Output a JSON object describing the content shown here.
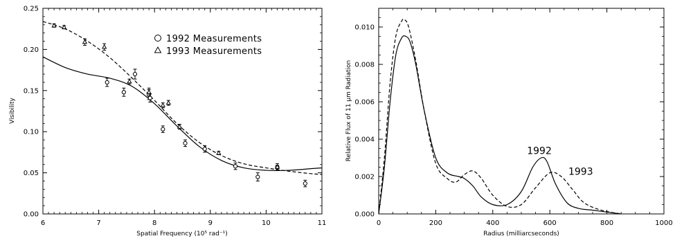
{
  "chart_data": [
    {
      "type": "scatter",
      "xlabel": "Spatial Frequency (10⁵ rad⁻¹)",
      "ylabel": "Visibility",
      "xlim": [
        6,
        11
      ],
      "ylim": [
        0,
        0.25
      ],
      "xticks": [
        6,
        7,
        8,
        9,
        10,
        11
      ],
      "yticks": [
        "0.00",
        "0.05",
        "0.10",
        "0.15",
        "0.20",
        "0.25"
      ],
      "legend": {
        "position": "top-right",
        "entries": [
          "1992 Measurements",
          "1993 Measurements"
        ]
      },
      "series": [
        {
          "name": "1992 Measurements",
          "marker": "circle",
          "points": [
            {
              "x": 7.15,
              "y": 0.16,
              "err": 0.005
            },
            {
              "x": 7.45,
              "y": 0.148,
              "err": 0.005
            },
            {
              "x": 7.65,
              "y": 0.17,
              "err": 0.006
            },
            {
              "x": 7.9,
              "y": 0.145,
              "err": 0.006
            },
            {
              "x": 7.92,
              "y": 0.141,
              "err": 0.005
            },
            {
              "x": 8.15,
              "y": 0.103,
              "err": 0.004
            },
            {
              "x": 8.55,
              "y": 0.086,
              "err": 0.004
            },
            {
              "x": 8.9,
              "y": 0.079,
              "err": 0.004
            },
            {
              "x": 9.45,
              "y": 0.058,
              "err": 0.004
            },
            {
              "x": 9.85,
              "y": 0.045,
              "err": 0.005
            },
            {
              "x": 10.2,
              "y": 0.057,
              "err": 0.004
            },
            {
              "x": 10.7,
              "y": 0.037,
              "err": 0.004
            }
          ]
        },
        {
          "name": "1993 Measurements",
          "marker": "triangle",
          "points": [
            {
              "x": 6.2,
              "y": 0.229,
              "err": 0.002
            },
            {
              "x": 6.38,
              "y": 0.227,
              "err": 0.002
            },
            {
              "x": 6.75,
              "y": 0.209,
              "err": 0.004
            },
            {
              "x": 7.1,
              "y": 0.203,
              "err": 0.004
            },
            {
              "x": 7.55,
              "y": 0.161,
              "err": 0.003
            },
            {
              "x": 7.9,
              "y": 0.148,
              "err": 0.005
            },
            {
              "x": 8.15,
              "y": 0.132,
              "err": 0.003
            },
            {
              "x": 8.25,
              "y": 0.135,
              "err": 0.003
            },
            {
              "x": 8.45,
              "y": 0.106,
              "err": 0.003
            },
            {
              "x": 9.15,
              "y": 0.074,
              "err": 0.002
            },
            {
              "x": 10.2,
              "y": 0.057,
              "err": 0.002
            }
          ]
        }
      ],
      "curves": [
        {
          "style": "solid",
          "x": [
            6.0,
            6.4,
            6.8,
            7.2,
            7.6,
            8.0,
            8.4,
            8.8,
            9.2,
            9.6,
            10.0,
            10.4,
            10.8,
            11.0
          ],
          "y": [
            0.191,
            0.178,
            0.17,
            0.165,
            0.155,
            0.134,
            0.107,
            0.082,
            0.065,
            0.056,
            0.053,
            0.053,
            0.055,
            0.056
          ]
        },
        {
          "style": "dashed",
          "x": [
            6.0,
            6.4,
            6.8,
            7.2,
            7.6,
            8.0,
            8.4,
            8.8,
            9.2,
            9.6,
            10.0,
            10.4,
            10.8,
            11.0
          ],
          "y": [
            0.234,
            0.225,
            0.21,
            0.19,
            0.165,
            0.138,
            0.11,
            0.087,
            0.071,
            0.061,
            0.056,
            0.052,
            0.049,
            0.048
          ]
        }
      ]
    },
    {
      "type": "line",
      "xlabel": "Radius (milliarcseconds)",
      "ylabel": "Relative Flux of 11 μm Radiation",
      "xlim": [
        0,
        1000
      ],
      "ylim": [
        0,
        0.011
      ],
      "xticks": [
        0,
        200,
        400,
        600,
        800,
        1000
      ],
      "yticks": [
        "0.000",
        "0.002",
        "0.004",
        "0.006",
        "0.008",
        "0.010"
      ],
      "annotations": [
        {
          "text": "1992",
          "x": 520,
          "y": 0.0032
        },
        {
          "text": "1993",
          "x": 665,
          "y": 0.0021
        }
      ],
      "series": [
        {
          "style": "solid",
          "x": [
            0,
            20,
            40,
            60,
            80,
            95,
            110,
            130,
            160,
            200,
            240,
            280,
            300,
            330,
            360,
            400,
            450,
            500,
            540,
            570,
            590,
            620,
            660,
            700,
            750,
            800,
            850
          ],
          "y": [
            0,
            0.0025,
            0.006,
            0.0085,
            0.0094,
            0.0095,
            0.0092,
            0.008,
            0.0055,
            0.003,
            0.0022,
            0.002,
            0.0019,
            0.0015,
            0.0009,
            0.0005,
            0.0005,
            0.0012,
            0.0025,
            0.003,
            0.0028,
            0.0016,
            0.0006,
            0.0003,
            0.0002,
            0.0001,
            0
          ]
        },
        {
          "style": "dashed",
          "x": [
            0,
            20,
            40,
            60,
            80,
            90,
            105,
            130,
            160,
            200,
            240,
            270,
            300,
            330,
            360,
            400,
            450,
            500,
            550,
            600,
            640,
            680,
            720,
            780,
            850
          ],
          "y": [
            0,
            0.003,
            0.007,
            0.0095,
            0.0103,
            0.0104,
            0.01,
            0.0082,
            0.0055,
            0.0027,
            0.0019,
            0.0017,
            0.0021,
            0.0023,
            0.0019,
            0.001,
            0.0004,
            0.0005,
            0.0014,
            0.0022,
            0.002,
            0.0013,
            0.0006,
            0.0002,
            0
          ]
        }
      ]
    }
  ]
}
